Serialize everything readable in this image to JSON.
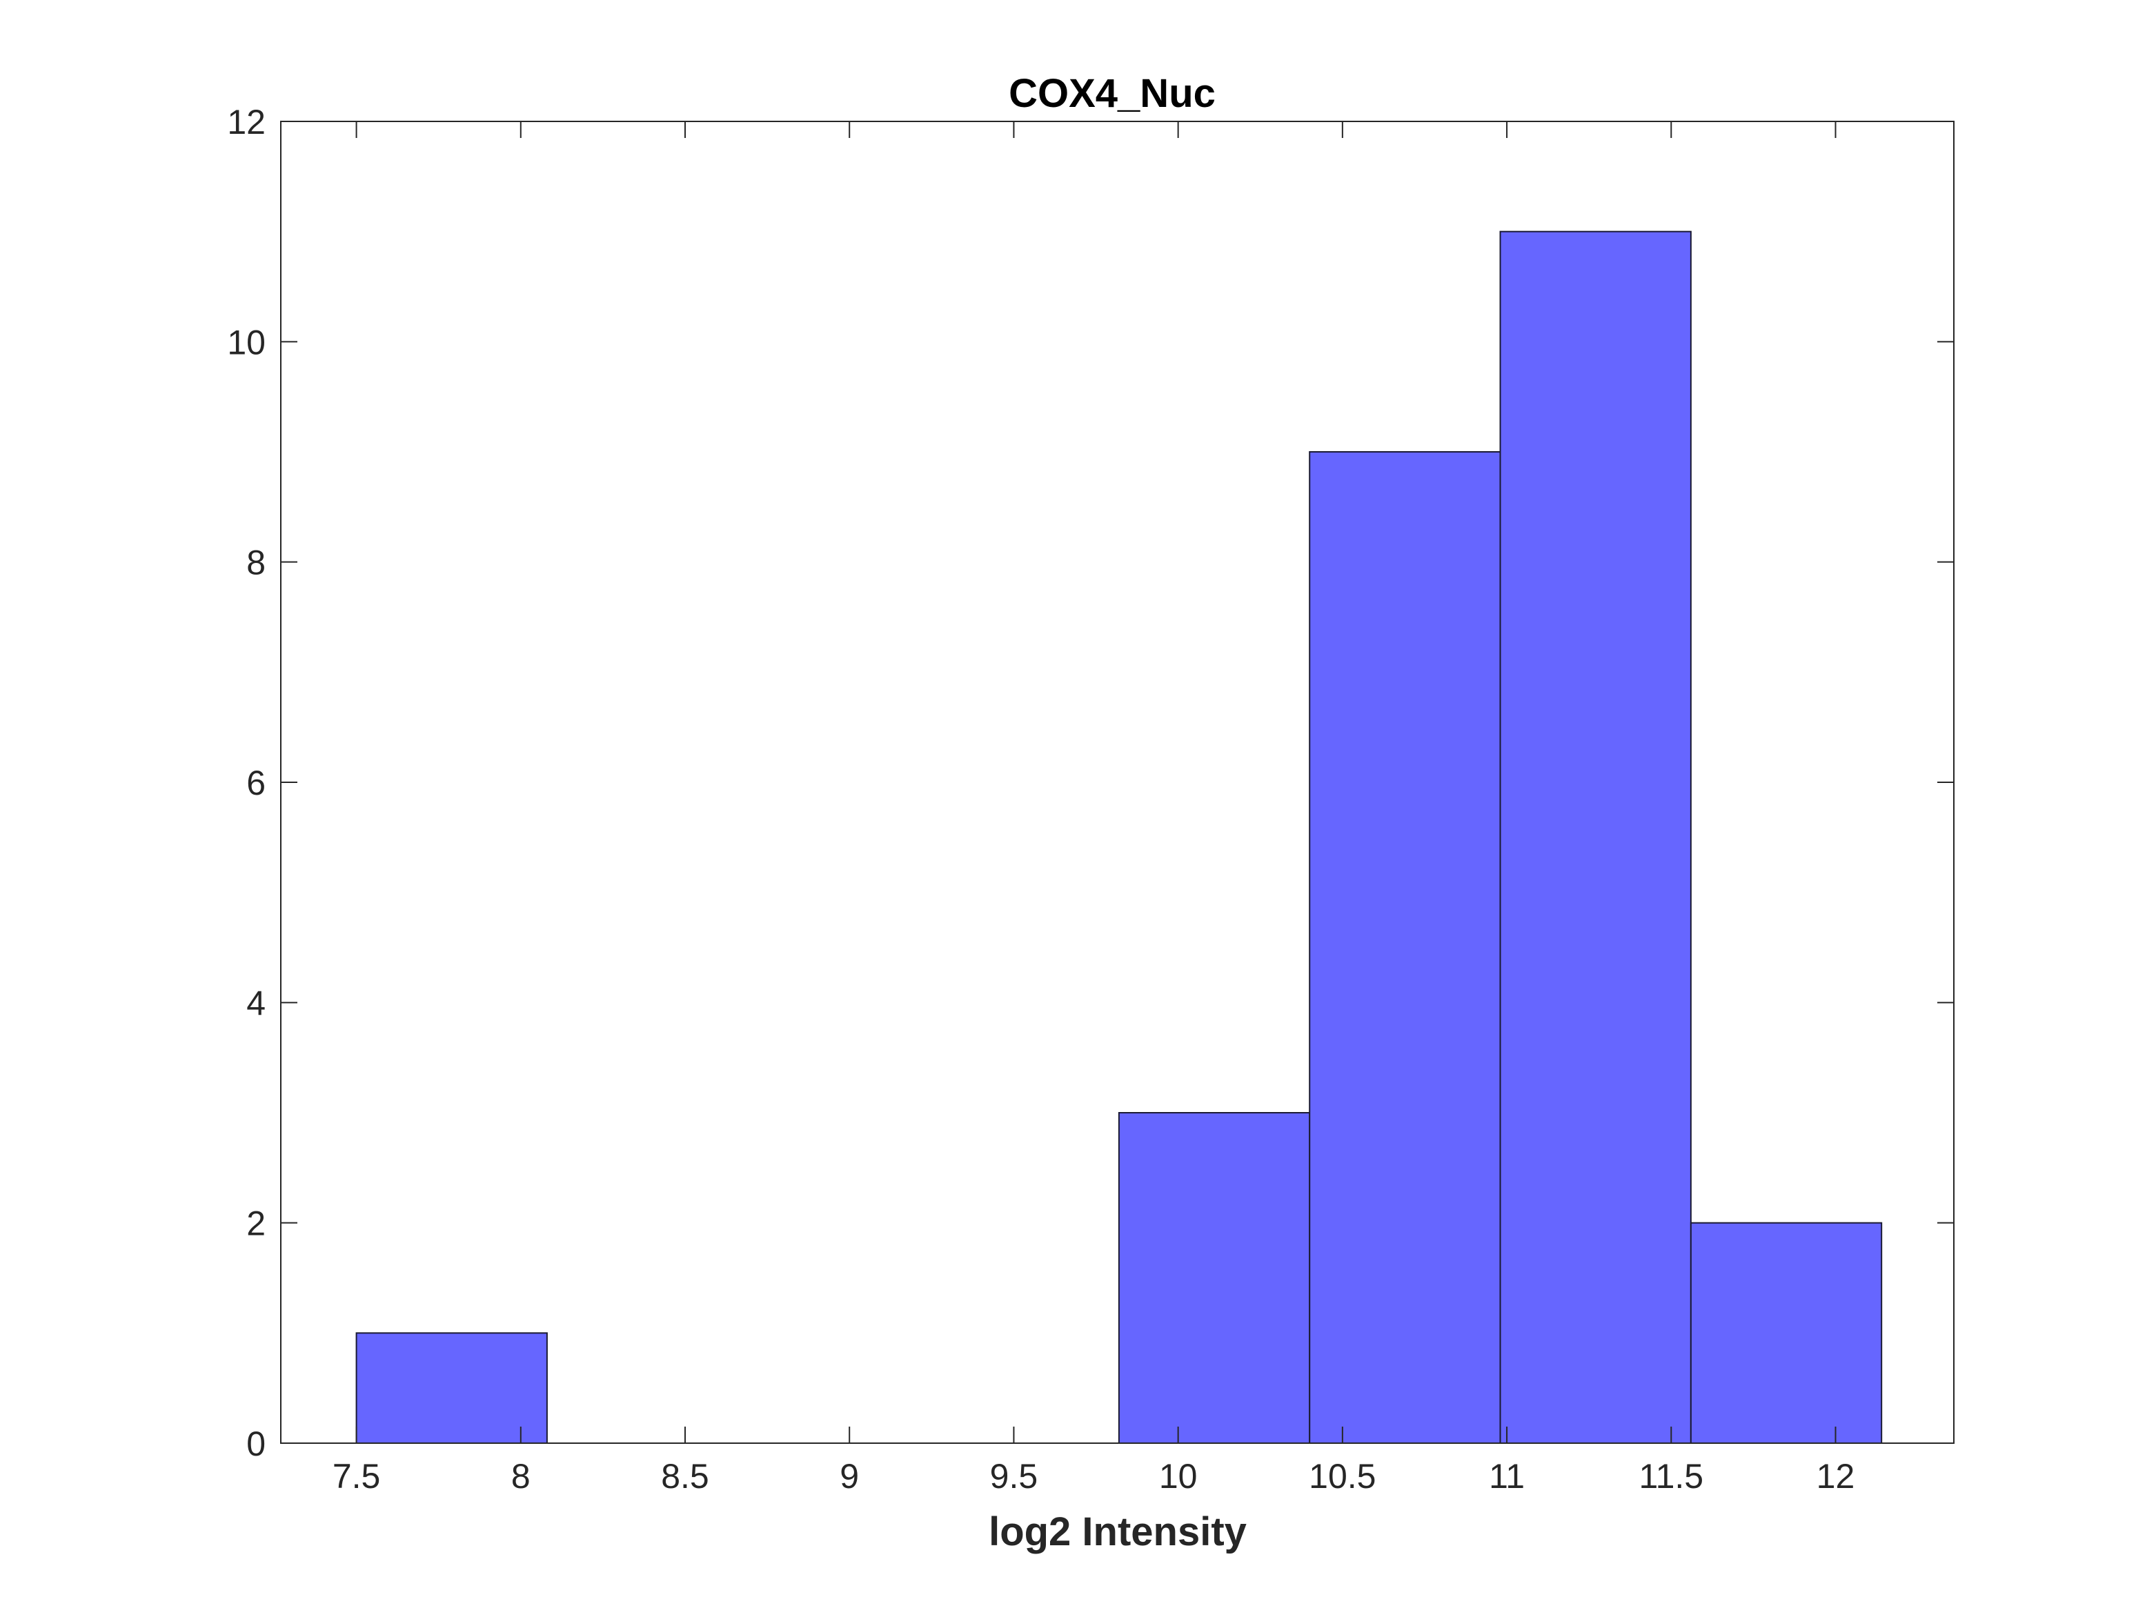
{
  "chart_data": {
    "type": "bar",
    "title": "COX4_Nuc",
    "xlabel": "log2 Intensity",
    "ylabel": "",
    "xlim": [
      7.27,
      12.36
    ],
    "ylim": [
      0,
      12
    ],
    "xticks": [
      "7.5",
      "8",
      "8.5",
      "9",
      "9.5",
      "10",
      "10.5",
      "11",
      "11.5",
      "12"
    ],
    "yticks": [
      "0",
      "2",
      "4",
      "6",
      "8",
      "10",
      "12"
    ],
    "bin_edges": [
      7.5,
      8.08,
      8.66,
      9.24,
      9.82,
      10.4,
      10.98,
      11.56,
      12.14
    ],
    "values": [
      1,
      0,
      0,
      0,
      3,
      9,
      11,
      2
    ],
    "grid": false,
    "colors": {
      "bar_fill": "#6666ff",
      "bar_edge": "#1a1a33",
      "axis": "#262626"
    }
  }
}
